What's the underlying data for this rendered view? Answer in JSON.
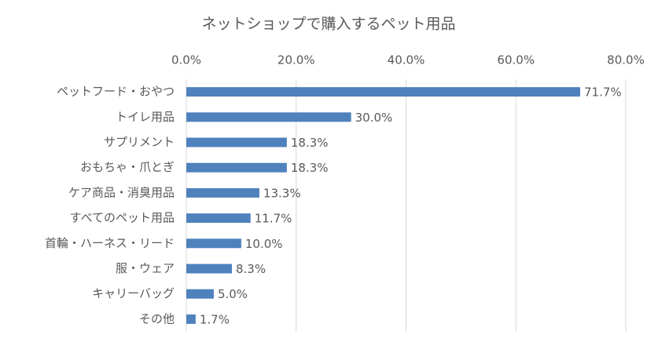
{
  "chart_data": {
    "type": "bar",
    "orientation": "horizontal",
    "title": "ネットショップで購入するペット用品",
    "categories": [
      "ペットフード・おやつ",
      "トイレ用品",
      "サプリメント",
      "おもちゃ・爪とぎ",
      "ケア商品・消臭用品",
      "すべてのペット用品",
      "首輪・ハーネス・リード",
      "服・ウェア",
      "キャリーバッグ",
      "その他"
    ],
    "values": [
      71.7,
      30.0,
      18.3,
      18.3,
      13.3,
      11.7,
      10.0,
      8.3,
      5.0,
      1.7
    ],
    "value_labels": [
      "71.7%",
      "30.0%",
      "18.3%",
      "18.3%",
      "13.3%",
      "11.7%",
      "10.0%",
      "8.3%",
      "5.0%",
      "1.7%"
    ],
    "color": "#4f81bd",
    "xlim": [
      0,
      80
    ],
    "xticks": [
      {
        "value": 0,
        "label": "0.0%"
      },
      {
        "value": 20,
        "label": "20.0%"
      },
      {
        "value": 40,
        "label": "40.0%"
      },
      {
        "value": 60,
        "label": "60.0%"
      },
      {
        "value": 80,
        "label": "80.0%"
      }
    ],
    "grid": true
  }
}
